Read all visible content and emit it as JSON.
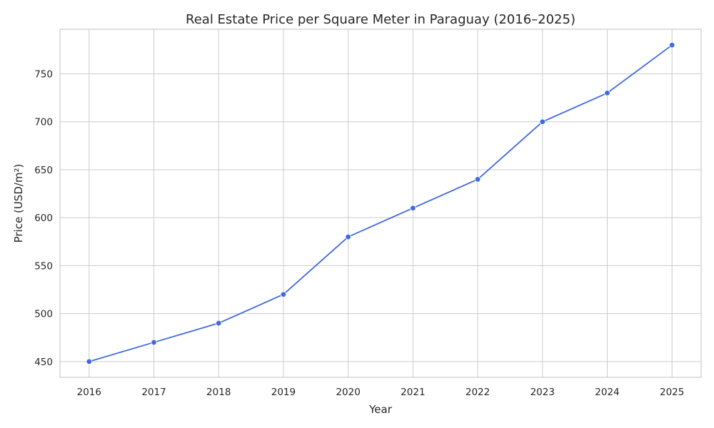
{
  "chart_data": {
    "type": "line",
    "title": "Real Estate Price per Square Meter in Paraguay (2016–2025)",
    "xlabel": "Year",
    "ylabel": "Price (USD/m²)",
    "x": [
      2016,
      2017,
      2018,
      2019,
      2020,
      2021,
      2022,
      2023,
      2024,
      2025
    ],
    "series": [
      {
        "values": [
          450,
          470,
          490,
          520,
          580,
          610,
          640,
          700,
          730,
          780
        ]
      }
    ],
    "xlim": [
      2015.55,
      2025.45
    ],
    "ylim": [
      433.5,
      796.5
    ],
    "yticks": [
      450,
      500,
      550,
      600,
      650,
      700,
      750
    ],
    "grid": true,
    "legend": "none",
    "colors": {
      "line": "#4169e1",
      "marker": "#4169e1",
      "grid": "#cccccc",
      "text": "#262626"
    }
  }
}
